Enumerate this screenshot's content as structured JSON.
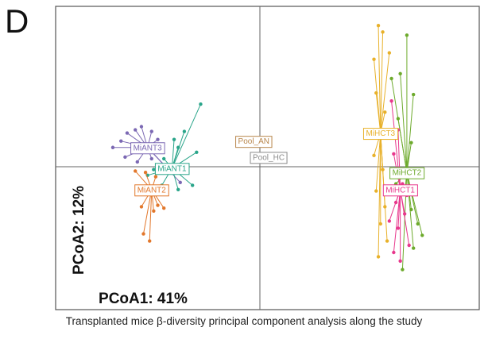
{
  "panel_letter": "D",
  "caption": "Transplanted mice β-diversity principal component analysis along the study",
  "chart_data": {
    "type": "scatter",
    "title": "",
    "xlabel": "PCoA1: 41%",
    "ylabel": "PCoA2: 12%",
    "xlim": [
      -1,
      1
    ],
    "ylim": [
      -1,
      1
    ],
    "grid": false,
    "groups": [
      {
        "name": "MiANT3",
        "color": "#7b68b3",
        "centroid": [
          -0.55,
          0.12
        ],
        "points": [
          [
            -0.72,
            0.12
          ],
          [
            -0.68,
            0.16
          ],
          [
            -0.65,
            0.21
          ],
          [
            -0.61,
            0.23
          ],
          [
            -0.58,
            0.25
          ],
          [
            -0.53,
            0.22
          ],
          [
            -0.5,
            0.17
          ],
          [
            -0.49,
            0.1
          ],
          [
            -0.53,
            0.05
          ],
          [
            -0.6,
            0.03
          ],
          [
            -0.66,
            0.06
          ],
          [
            -0.44,
            -0.03
          ],
          [
            -0.39,
            -0.11
          ]
        ]
      },
      {
        "name": "MiANT1",
        "color": "#2aa58a",
        "centroid": [
          -0.43,
          -0.01
        ],
        "points": [
          [
            -0.29,
            0.39
          ],
          [
            -0.37,
            0.22
          ],
          [
            -0.42,
            0.17
          ],
          [
            -0.4,
            0.12
          ],
          [
            -0.47,
            0.05
          ],
          [
            -0.52,
            -0.02
          ],
          [
            -0.48,
            -0.13
          ],
          [
            -0.4,
            -0.16
          ],
          [
            -0.33,
            -0.13
          ],
          [
            -0.36,
            -0.04
          ],
          [
            -0.55,
            -0.06
          ],
          [
            -0.31,
            0.09
          ]
        ]
      },
      {
        "name": "MiANT2",
        "color": "#e2772b",
        "centroid": [
          -0.53,
          -0.16
        ],
        "points": [
          [
            -0.61,
            -0.03
          ],
          [
            -0.56,
            -0.04
          ],
          [
            -0.51,
            -0.07
          ],
          [
            -0.55,
            -0.18
          ],
          [
            -0.5,
            -0.27
          ],
          [
            -0.47,
            -0.29
          ],
          [
            -0.52,
            -0.31
          ],
          [
            -0.58,
            -0.28
          ],
          [
            -0.6,
            -0.16
          ],
          [
            -0.57,
            -0.47
          ],
          [
            -0.54,
            -0.52
          ]
        ]
      },
      {
        "name": "MiHCT3",
        "color": "#e8b12a",
        "centroid": [
          0.55,
          0.21
        ],
        "points": [
          [
            0.54,
            0.88
          ],
          [
            0.56,
            0.84
          ],
          [
            0.52,
            0.67
          ],
          [
            0.59,
            0.71
          ],
          [
            0.53,
            0.46
          ],
          [
            0.57,
            0.34
          ],
          [
            0.52,
            0.07
          ],
          [
            0.56,
            -0.02
          ],
          [
            0.53,
            -0.17
          ],
          [
            0.57,
            -0.28
          ],
          [
            0.55,
            -0.4
          ],
          [
            0.58,
            -0.52
          ],
          [
            0.54,
            -0.63
          ]
        ]
      },
      {
        "name": "MiHCT2",
        "color": "#6daa2c",
        "centroid": [
          0.67,
          -0.04
        ],
        "points": [
          [
            0.67,
            0.82
          ],
          [
            0.64,
            0.58
          ],
          [
            0.7,
            0.45
          ],
          [
            0.63,
            0.3
          ],
          [
            0.69,
            0.15
          ],
          [
            0.66,
            -0.19
          ],
          [
            0.69,
            -0.3
          ],
          [
            0.74,
            -0.48
          ],
          [
            0.7,
            -0.57
          ],
          [
            0.65,
            -0.72
          ],
          [
            0.72,
            -0.4
          ],
          [
            0.62,
            -0.12
          ],
          [
            0.6,
            0.55
          ]
        ]
      },
      {
        "name": "MiHCT1",
        "color": "#e8378c",
        "centroid": [
          0.64,
          -0.16
        ],
        "points": [
          [
            0.6,
            0.41
          ],
          [
            0.63,
            0.23
          ],
          [
            0.61,
            0.08
          ],
          [
            0.65,
            -0.12
          ],
          [
            0.62,
            -0.25
          ],
          [
            0.66,
            -0.33
          ],
          [
            0.63,
            -0.43
          ],
          [
            0.68,
            -0.55
          ],
          [
            0.61,
            -0.6
          ],
          [
            0.64,
            -0.66
          ],
          [
            0.59,
            -0.38
          ],
          [
            0.67,
            -0.2
          ]
        ]
      }
    ],
    "pool_labels": [
      {
        "name": "Pool_AN",
        "color": "#b8864b",
        "position": [
          -0.03,
          0.16
        ]
      },
      {
        "name": "Pool_HC",
        "color": "#8a8a8a",
        "position": [
          0.04,
          0.06
        ]
      }
    ]
  }
}
